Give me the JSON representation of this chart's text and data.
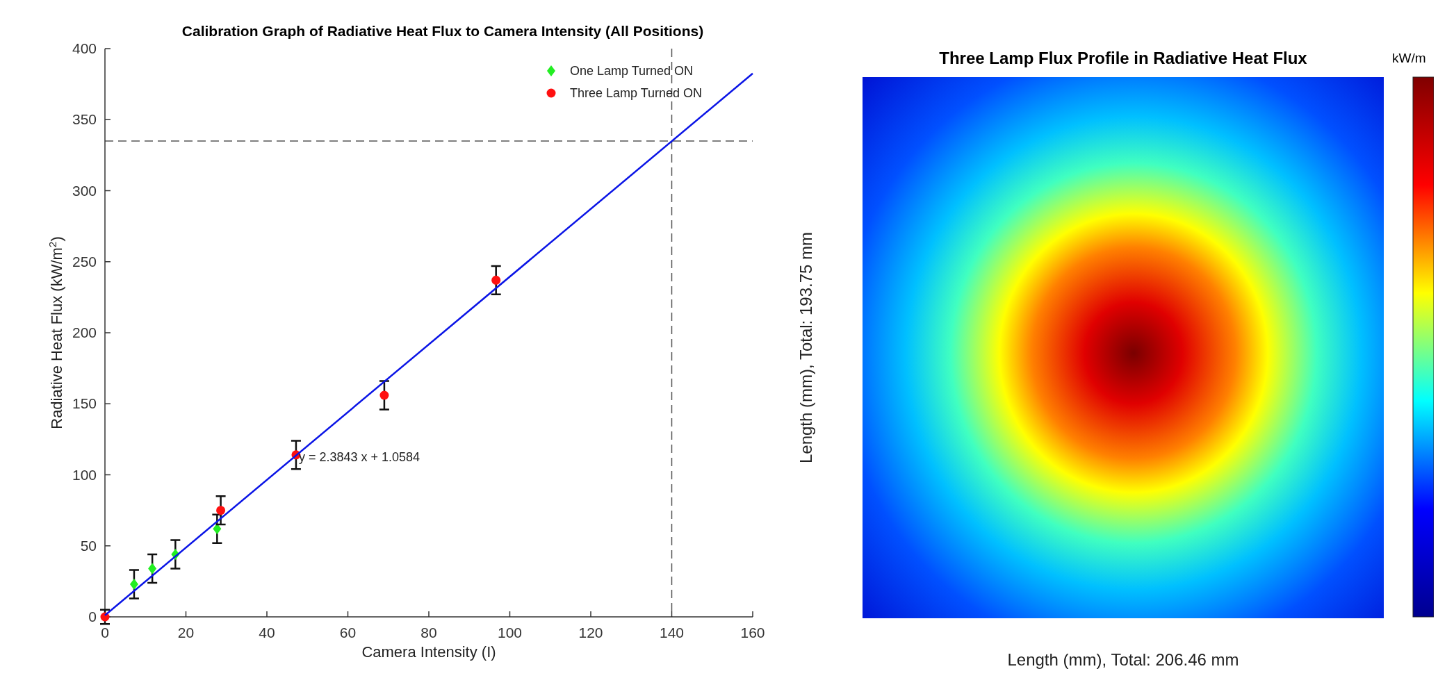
{
  "chart_data": [
    {
      "type": "scatter",
      "title": "Calibration Graph of Radiative Heat Flux to Camera Intensity (All Positions)",
      "xlabel": "Camera Intensity (I)",
      "ylabel": "Radiative Heat Flux (kW/m$^{2}$)",
      "xlim": [
        0,
        160
      ],
      "xticks": [
        0,
        20,
        40,
        60,
        80,
        100,
        120,
        140,
        160
      ],
      "ylim": [
        0,
        400
      ],
      "yticks": [
        0,
        50,
        100,
        150,
        200,
        250,
        300,
        350,
        400
      ],
      "grid": false,
      "legend": "top right",
      "series": [
        {
          "name": "One Lamp Turned ON",
          "color": "#22ee22",
          "marker": "diamond",
          "x": [
            7.2,
            11.7,
            17.4,
            27.7
          ],
          "values": [
            23,
            34,
            44,
            62
          ],
          "errors": [
            10,
            10,
            10,
            10
          ]
        },
        {
          "name": "Three Lamp Turned ON",
          "color": "#ff1010",
          "marker": "circle",
          "x": [
            0,
            28.6,
            47.2,
            69,
            96.6
          ],
          "values": [
            0,
            75,
            114,
            156,
            237
          ],
          "errors": [
            5,
            10,
            10,
            10,
            10
          ]
        },
        {
          "type": "line",
          "color": "#0a14e6",
          "marker": "none",
          "line_style": "solid",
          "x": [
            0,
            160
          ],
          "values": [
            1.1,
            382.5
          ]
        }
      ],
      "ref_lines": [
        {
          "axis": "x",
          "value": 140,
          "color": "#555555",
          "line_style": "dashed"
        },
        {
          "axis": "y",
          "value": 335,
          "color": "#555555",
          "line_style": "dashed"
        }
      ],
      "annotations": [
        {
          "text": "y = 2.3843 x +  1.0584",
          "x": 47.2,
          "y": 113
        }
      ]
    },
    {
      "type": "other",
      "title": "Three Lamp Flux Profile in Radiative Heat Flux",
      "xlabel": "Length (mm), Total: 206.46 mm",
      "ylabel": "Length (mm), Total: 193.75 mm",
      "clabel": "kW/m"
    }
  ]
}
